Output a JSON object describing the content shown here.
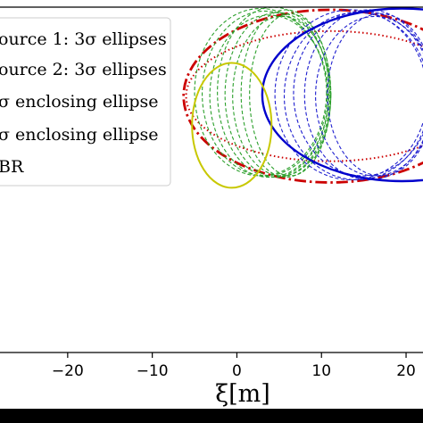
{
  "chart_data": {
    "type": "scatter",
    "xlabel": "ξ[m]",
    "xlim": [
      -28,
      22
    ],
    "ylim": [
      -15,
      11
    ],
    "x_ticks": [
      -20,
      -10,
      0,
      10,
      20
    ],
    "x_tick_labels": [
      "−20",
      "−10",
      "0",
      "10",
      "20"
    ],
    "grid": false,
    "legend": {
      "placement": "upper-left",
      "entries": [
        {
          "label": "ource 1: 3σ ellipses",
          "color": "#2ca02c",
          "style": "dashed"
        },
        {
          "label": "ource 2: 3σ ellipses",
          "color": "#1f1fcf",
          "style": "dashed"
        },
        {
          "label": "σ enclosing ellipse",
          "color": "#cc0000",
          "style": "dash-dot"
        },
        {
          "label": "σ enclosing ellipse",
          "color": "#cc0000",
          "style": "dotted"
        },
        {
          "label": "BR",
          "color": "#c8c800",
          "style": "solid"
        }
      ]
    },
    "series": [
      {
        "kind": "enclosing",
        "style": "dash-dot",
        "color": "#cc0000",
        "width": 2.8,
        "ellipses": [
          {
            "cx": 11,
            "cy": 4.3,
            "rx": 17.3,
            "ry": 6.5
          }
        ]
      },
      {
        "kind": "enclosing",
        "style": "dotted",
        "color": "#cc0000",
        "width": 2.0,
        "ellipses": [
          {
            "cx": 11,
            "cy": 4.3,
            "rx": 17.0,
            "ry": 4.9
          }
        ]
      },
      {
        "kind": "source-1",
        "style": "dashed",
        "color": "#2ca02c",
        "width": 1.1,
        "ellipses": [
          {
            "cx": 2.8,
            "cy": 4.6,
            "rx": 7.8,
            "ry": 6.3
          },
          {
            "cx": 3.3,
            "cy": 4.5,
            "rx": 7.4,
            "ry": 6.2
          },
          {
            "cx": 3.8,
            "cy": 4.3,
            "rx": 7.0,
            "ry": 6.1
          },
          {
            "cx": 4.3,
            "cy": 4.6,
            "rx": 6.6,
            "ry": 6.4
          },
          {
            "cx": 4.8,
            "cy": 4.4,
            "rx": 6.2,
            "ry": 6.2
          },
          {
            "cx": 5.3,
            "cy": 4.3,
            "rx": 5.8,
            "ry": 6.0
          },
          {
            "cx": 5.8,
            "cy": 4.5,
            "rx": 5.3,
            "ry": 6.3
          },
          {
            "cx": 6.3,
            "cy": 4.4,
            "rx": 4.8,
            "ry": 6.1
          }
        ]
      },
      {
        "kind": "source-2",
        "style": "dashed",
        "color": "#1f1fcf",
        "width": 1.1,
        "ellipses": [
          {
            "cx": 13.5,
            "cy": 4.4,
            "rx": 9.0,
            "ry": 6.4
          },
          {
            "cx": 14.2,
            "cy": 4.3,
            "rx": 8.6,
            "ry": 6.3
          },
          {
            "cx": 14.9,
            "cy": 4.5,
            "rx": 8.2,
            "ry": 6.2
          },
          {
            "cx": 15.6,
            "cy": 4.4,
            "rx": 7.6,
            "ry": 6.4
          },
          {
            "cx": 16.3,
            "cy": 4.3,
            "rx": 7.0,
            "ry": 6.0
          },
          {
            "cx": 17.0,
            "cy": 4.4,
            "rx": 6.3,
            "ry": 6.1
          }
        ]
      },
      {
        "kind": "enclosing-main",
        "style": "solid",
        "color": "#0000cc",
        "width": 2.4,
        "ellipses": [
          {
            "cx": 19.5,
            "cy": 4.4,
            "rx": 16.5,
            "ry": 6.5
          }
        ]
      },
      {
        "kind": "BR",
        "style": "solid",
        "color": "#c8c800",
        "width": 2.0,
        "ellipses": [
          {
            "cx": -0.6,
            "cy": 2.1,
            "rx": 4.7,
            "ry": 4.7
          }
        ]
      }
    ]
  }
}
